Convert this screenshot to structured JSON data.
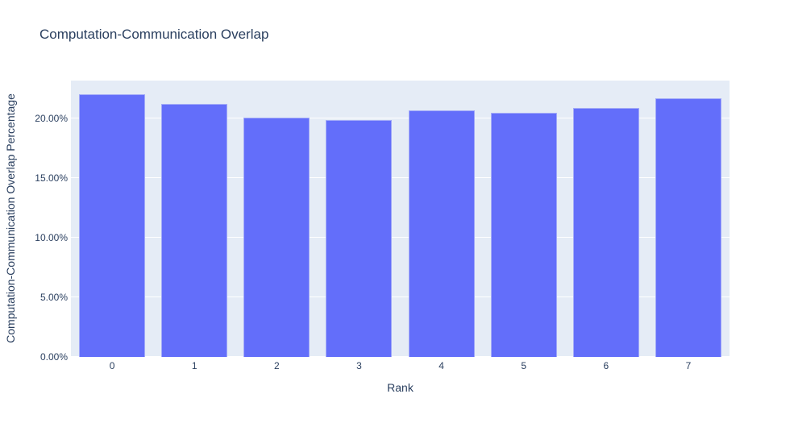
{
  "chart_data": {
    "type": "bar",
    "title": "Computation-Communication Overlap",
    "xlabel": "Rank",
    "ylabel": "Computation-Communication Overlap Percentage",
    "categories": [
      "0",
      "1",
      "2",
      "3",
      "4",
      "5",
      "6",
      "7"
    ],
    "values": [
      22.0,
      21.2,
      20.1,
      19.9,
      20.7,
      20.5,
      20.9,
      21.7
    ],
    "value_unit": "%",
    "ylim": [
      0,
      23.18
    ],
    "yticks": [
      {
        "value": 0,
        "label": "0.00%"
      },
      {
        "value": 5,
        "label": "5.00%"
      },
      {
        "value": 10,
        "label": "10.00%"
      },
      {
        "value": 15,
        "label": "15.00%"
      },
      {
        "value": 20,
        "label": "20.00%"
      }
    ],
    "grid": true,
    "legend": false,
    "colors": {
      "bar": "#636efa",
      "bar_border": "#a2aaf8",
      "plot_background": "#e5ecf6",
      "gridline": "#ffffff",
      "text": "#2a3f5f",
      "page_background": "#ffffff"
    }
  }
}
